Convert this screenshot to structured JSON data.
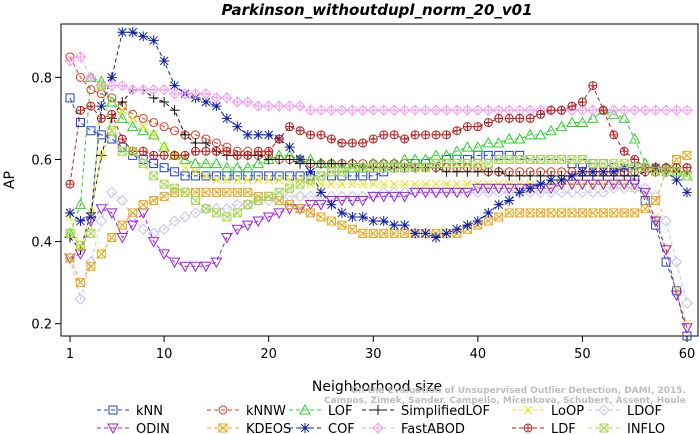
{
  "chart_data": {
    "type": "line",
    "title": "Parkinson_withoutdupl_norm_20_v01",
    "xlabel": "Neighborhood size",
    "ylabel": "AP",
    "xlim": [
      1,
      60
    ],
    "ylim": [
      0.17,
      0.93
    ],
    "xticks": [
      1,
      10,
      20,
      30,
      40,
      50,
      60
    ],
    "yticks": [
      0.2,
      0.4,
      0.6,
      0.8
    ],
    "legend_position": "bottom",
    "watermark": [
      "Campos, Zimek, Sander, Campello, Micenkova, Schubert, Assent, Houle",
      "On the Evaluation of Unsupervised Outlier Detection, DAMI, 2015."
    ],
    "series": [
      {
        "name": "kNN",
        "color": "#1f3fd0",
        "marker": "square",
        "values": [
          0.75,
          0.69,
          0.67,
          0.66,
          0.65,
          0.63,
          0.61,
          0.6,
          0.59,
          0.58,
          0.57,
          0.56,
          0.56,
          0.56,
          0.56,
          0.56,
          0.56,
          0.56,
          0.56,
          0.56,
          0.56,
          0.56,
          0.56,
          0.56,
          0.56,
          0.56,
          0.56,
          0.56,
          0.56,
          0.56,
          0.57,
          0.58,
          0.58,
          0.59,
          0.59,
          0.59,
          0.6,
          0.6,
          0.6,
          0.61,
          0.61,
          0.61,
          0.61,
          0.61,
          0.6,
          0.6,
          0.6,
          0.6,
          0.59,
          0.59,
          0.59,
          0.59,
          0.58,
          0.57,
          0.55,
          0.5,
          0.44,
          0.35,
          0.28,
          0.17
        ]
      },
      {
        "name": "kNNW",
        "color": "#e23a22",
        "marker": "circle",
        "values": [
          0.85,
          0.8,
          0.77,
          0.76,
          0.75,
          0.73,
          0.71,
          0.7,
          0.69,
          0.68,
          0.67,
          0.66,
          0.66,
          0.65,
          0.64,
          0.63,
          0.62,
          0.62,
          0.61,
          0.61,
          0.6,
          0.6,
          0.6,
          0.59,
          0.59,
          0.59,
          0.59,
          0.59,
          0.59,
          0.59,
          0.59,
          0.59,
          0.59,
          0.58,
          0.58,
          0.58,
          0.58,
          0.58,
          0.58,
          0.58,
          0.57,
          0.57,
          0.57,
          0.57,
          0.57,
          0.57,
          0.57,
          0.57,
          0.57,
          0.57,
          0.57,
          0.57,
          0.57,
          0.57,
          0.57,
          0.57,
          0.57,
          0.58,
          0.58,
          0.58
        ]
      },
      {
        "name": "LOF",
        "color": "#2fd12f",
        "marker": "triangle-up",
        "values": [
          0.42,
          0.49,
          0.8,
          0.79,
          0.74,
          0.7,
          0.68,
          0.67,
          0.66,
          0.63,
          0.61,
          0.6,
          0.59,
          0.59,
          0.59,
          0.58,
          0.58,
          0.58,
          0.59,
          0.6,
          0.61,
          0.61,
          0.6,
          0.6,
          0.59,
          0.59,
          0.58,
          0.58,
          0.58,
          0.59,
          0.59,
          0.59,
          0.6,
          0.6,
          0.6,
          0.61,
          0.61,
          0.62,
          0.63,
          0.63,
          0.64,
          0.64,
          0.65,
          0.65,
          0.66,
          0.66,
          0.67,
          0.68,
          0.69,
          0.69,
          0.7,
          0.72,
          0.71,
          0.7,
          0.65,
          0.59,
          0.58,
          0.58,
          0.57,
          0.56
        ]
      },
      {
        "name": "SimplifiedLOF",
        "color": "#111111",
        "marker": "plus",
        "values": [
          0.41,
          0.38,
          0.47,
          0.61,
          0.7,
          0.74,
          0.77,
          0.77,
          0.75,
          0.74,
          0.72,
          0.66,
          0.64,
          0.64,
          0.62,
          0.61,
          0.61,
          0.61,
          0.61,
          0.6,
          0.6,
          0.6,
          0.59,
          0.59,
          0.59,
          0.59,
          0.59,
          0.59,
          0.58,
          0.58,
          0.58,
          0.58,
          0.58,
          0.58,
          0.58,
          0.58,
          0.57,
          0.57,
          0.57,
          0.57,
          0.57,
          0.57,
          0.56,
          0.56,
          0.56,
          0.56,
          0.56,
          0.56,
          0.56,
          0.56,
          0.56,
          0.56,
          0.56,
          0.56,
          0.56,
          0.57,
          0.57,
          0.57,
          0.57,
          0.57
        ]
      },
      {
        "name": "LoOP",
        "color": "#e5e51a",
        "marker": "x",
        "values": [
          0.46,
          0.38,
          0.47,
          0.61,
          0.67,
          0.72,
          0.7,
          0.68,
          0.66,
          0.63,
          0.61,
          0.58,
          0.57,
          0.56,
          0.55,
          0.55,
          0.55,
          0.55,
          0.55,
          0.55,
          0.55,
          0.55,
          0.55,
          0.54,
          0.54,
          0.54,
          0.54,
          0.54,
          0.54,
          0.54,
          0.54,
          0.54,
          0.54,
          0.54,
          0.54,
          0.54,
          0.54,
          0.54,
          0.54,
          0.54,
          0.54,
          0.54,
          0.54,
          0.54,
          0.54,
          0.54,
          0.54,
          0.54,
          0.54,
          0.54,
          0.54,
          0.54,
          0.54,
          0.54,
          0.53,
          0.51,
          0.46,
          0.38,
          0.28,
          0.2
        ]
      },
      {
        "name": "LDOF",
        "color": "#c3c3ee",
        "marker": "diamond",
        "values": [
          0.36,
          0.26,
          0.35,
          0.45,
          0.52,
          0.5,
          0.46,
          0.43,
          0.42,
          0.43,
          0.45,
          0.46,
          0.47,
          0.48,
          0.48,
          0.48,
          0.49,
          0.49,
          0.5,
          0.5,
          0.51,
          0.51,
          0.51,
          0.51,
          0.51,
          0.51,
          0.51,
          0.51,
          0.51,
          0.51,
          0.52,
          0.52,
          0.52,
          0.52,
          0.52,
          0.52,
          0.52,
          0.52,
          0.52,
          0.52,
          0.52,
          0.52,
          0.52,
          0.52,
          0.52,
          0.52,
          0.52,
          0.52,
          0.52,
          0.52,
          0.52,
          0.52,
          0.53,
          0.53,
          0.53,
          0.53,
          0.51,
          0.45,
          0.35,
          0.25
        ]
      },
      {
        "name": "ODIN",
        "color": "#a020e0",
        "marker": "triangle-down",
        "values": [
          0.36,
          0.37,
          0.45,
          0.48,
          0.47,
          0.41,
          0.44,
          0.47,
          0.4,
          0.37,
          0.35,
          0.34,
          0.34,
          0.34,
          0.35,
          0.41,
          0.43,
          0.44,
          0.45,
          0.46,
          0.47,
          0.48,
          0.48,
          0.49,
          0.49,
          0.5,
          0.5,
          0.5,
          0.5,
          0.51,
          0.51,
          0.51,
          0.51,
          0.52,
          0.52,
          0.52,
          0.52,
          0.52,
          0.52,
          0.53,
          0.53,
          0.53,
          0.53,
          0.53,
          0.53,
          0.53,
          0.53,
          0.54,
          0.54,
          0.54,
          0.54,
          0.54,
          0.54,
          0.54,
          0.54,
          0.52,
          0.45,
          0.38,
          0.27,
          0.19
        ]
      },
      {
        "name": "KDEOS",
        "color": "#e8a820",
        "marker": "boxed-x",
        "values": [
          0.36,
          0.3,
          0.34,
          0.37,
          0.41,
          0.44,
          0.47,
          0.49,
          0.5,
          0.51,
          0.52,
          0.52,
          0.52,
          0.52,
          0.52,
          0.52,
          0.52,
          0.52,
          0.51,
          0.51,
          0.5,
          0.49,
          0.48,
          0.47,
          0.46,
          0.45,
          0.44,
          0.43,
          0.42,
          0.42,
          0.42,
          0.42,
          0.42,
          0.42,
          0.42,
          0.42,
          0.42,
          0.42,
          0.43,
          0.44,
          0.45,
          0.46,
          0.47,
          0.47,
          0.47,
          0.47,
          0.47,
          0.47,
          0.47,
          0.47,
          0.47,
          0.47,
          0.47,
          0.47,
          0.47,
          0.48,
          0.5,
          0.57,
          0.6,
          0.61
        ]
      },
      {
        "name": "COF",
        "color": "#0f1fa0",
        "marker": "star",
        "values": [
          0.47,
          0.45,
          0.46,
          0.73,
          0.8,
          0.91,
          0.91,
          0.9,
          0.89,
          0.84,
          0.78,
          0.76,
          0.75,
          0.74,
          0.73,
          0.7,
          0.68,
          0.66,
          0.66,
          0.66,
          0.65,
          0.63,
          0.6,
          0.57,
          0.52,
          0.49,
          0.47,
          0.46,
          0.46,
          0.45,
          0.45,
          0.44,
          0.44,
          0.42,
          0.42,
          0.41,
          0.42,
          0.43,
          0.44,
          0.45,
          0.47,
          0.49,
          0.5,
          0.52,
          0.53,
          0.54,
          0.55,
          0.55,
          0.56,
          0.57,
          0.57,
          0.57,
          0.57,
          0.58,
          0.58,
          0.58,
          0.58,
          0.57,
          0.55,
          0.52
        ]
      },
      {
        "name": "FastABOD",
        "color": "#f2a0f2",
        "marker": "diamond-plus",
        "values": [
          0.84,
          0.85,
          0.8,
          0.78,
          0.78,
          0.78,
          0.77,
          0.77,
          0.77,
          0.77,
          0.76,
          0.76,
          0.76,
          0.76,
          0.75,
          0.75,
          0.74,
          0.74,
          0.73,
          0.73,
          0.73,
          0.73,
          0.73,
          0.72,
          0.72,
          0.72,
          0.72,
          0.72,
          0.72,
          0.72,
          0.72,
          0.72,
          0.72,
          0.72,
          0.72,
          0.72,
          0.72,
          0.72,
          0.72,
          0.72,
          0.72,
          0.72,
          0.72,
          0.72,
          0.72,
          0.72,
          0.72,
          0.72,
          0.72,
          0.72,
          0.72,
          0.72,
          0.72,
          0.72,
          0.72,
          0.72,
          0.72,
          0.72,
          0.72,
          0.72
        ]
      },
      {
        "name": "LDF",
        "color": "#b81c1c",
        "marker": "circle-plus",
        "values": [
          0.54,
          0.72,
          0.73,
          0.7,
          0.71,
          0.65,
          0.62,
          0.62,
          0.61,
          0.61,
          0.61,
          0.61,
          0.62,
          0.62,
          0.62,
          0.62,
          0.61,
          0.61,
          0.62,
          0.62,
          0.65,
          0.68,
          0.67,
          0.66,
          0.66,
          0.65,
          0.64,
          0.64,
          0.64,
          0.65,
          0.66,
          0.66,
          0.65,
          0.66,
          0.66,
          0.66,
          0.66,
          0.67,
          0.68,
          0.68,
          0.69,
          0.7,
          0.7,
          0.7,
          0.7,
          0.71,
          0.72,
          0.72,
          0.73,
          0.74,
          0.78,
          0.72,
          0.66,
          0.62,
          0.6,
          0.58,
          0.58,
          0.58,
          0.58,
          0.58
        ]
      },
      {
        "name": "INFLO",
        "color": "#a8d850",
        "marker": "boxed-x-green",
        "values": [
          0.42,
          0.39,
          0.42,
          0.78,
          0.67,
          0.62,
          0.62,
          0.59,
          0.56,
          0.54,
          0.53,
          0.52,
          0.5,
          0.48,
          0.47,
          0.46,
          0.47,
          0.49,
          0.5,
          0.51,
          0.52,
          0.53,
          0.54,
          0.55,
          0.56,
          0.57,
          0.57,
          0.58,
          0.58,
          0.58,
          0.58,
          0.58,
          0.58,
          0.58,
          0.58,
          0.59,
          0.59,
          0.59,
          0.59,
          0.59,
          0.59,
          0.6,
          0.6,
          0.6,
          0.6,
          0.6,
          0.6,
          0.6,
          0.6,
          0.6,
          0.59,
          0.59,
          0.59,
          0.59,
          0.58,
          0.58,
          0.57,
          0.57,
          0.57,
          0.56
        ]
      }
    ]
  }
}
